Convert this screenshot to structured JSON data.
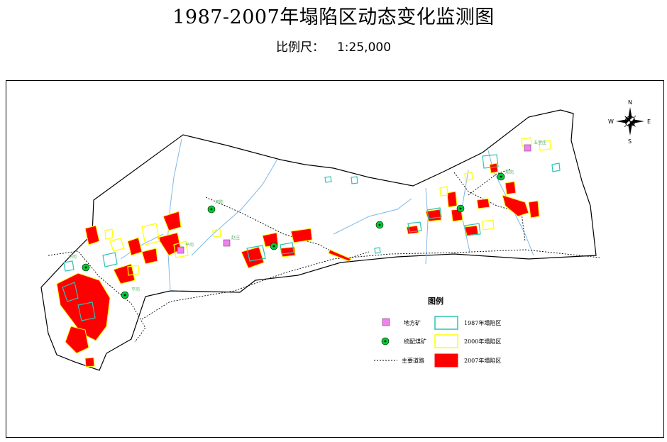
{
  "map": {
    "title": "1987-2007年塌陷区动态变化监测图",
    "scale_label": "比例尺：",
    "scale_value": "1:25,000"
  },
  "compass": {
    "north": "N",
    "south": "S",
    "east": "E",
    "west": "W"
  },
  "place_labels": {
    "p1": "五里庄",
    "p2": "赵庄",
    "p3": "平岗",
    "p4": "河陈",
    "p5": "平岗",
    "p6": "许岗",
    "p7": "邢岗"
  },
  "legend": {
    "title": "图例",
    "items": [
      {
        "label": "地方矿",
        "symbol": "local-mine-square",
        "color": "#ee82ee"
      },
      {
        "label": "统配煤矿",
        "symbol": "state-mine-circle",
        "color": "#00cc33"
      },
      {
        "label": "主要道路",
        "symbol": "dashed-road-line",
        "color": "#000000"
      },
      {
        "label": "1987年塌陷区",
        "symbol": "cyan-outline-box",
        "color": "#2ec4b6"
      },
      {
        "label": "2000年塌陷区",
        "symbol": "yellow-outline-box",
        "color": "#ffff00"
      },
      {
        "label": "2007年塌陷区",
        "symbol": "red-fill-box",
        "color": "#ff0000"
      }
    ]
  },
  "colors": {
    "boundary": "#000000",
    "river": "#7fb7e6",
    "subsidence_1987": "#2ec4b6",
    "subsidence_2000": "#ffff00",
    "subsidence_2007": "#ff0000",
    "local_mine": "#ee82ee",
    "state_mine": "#00cc33"
  }
}
